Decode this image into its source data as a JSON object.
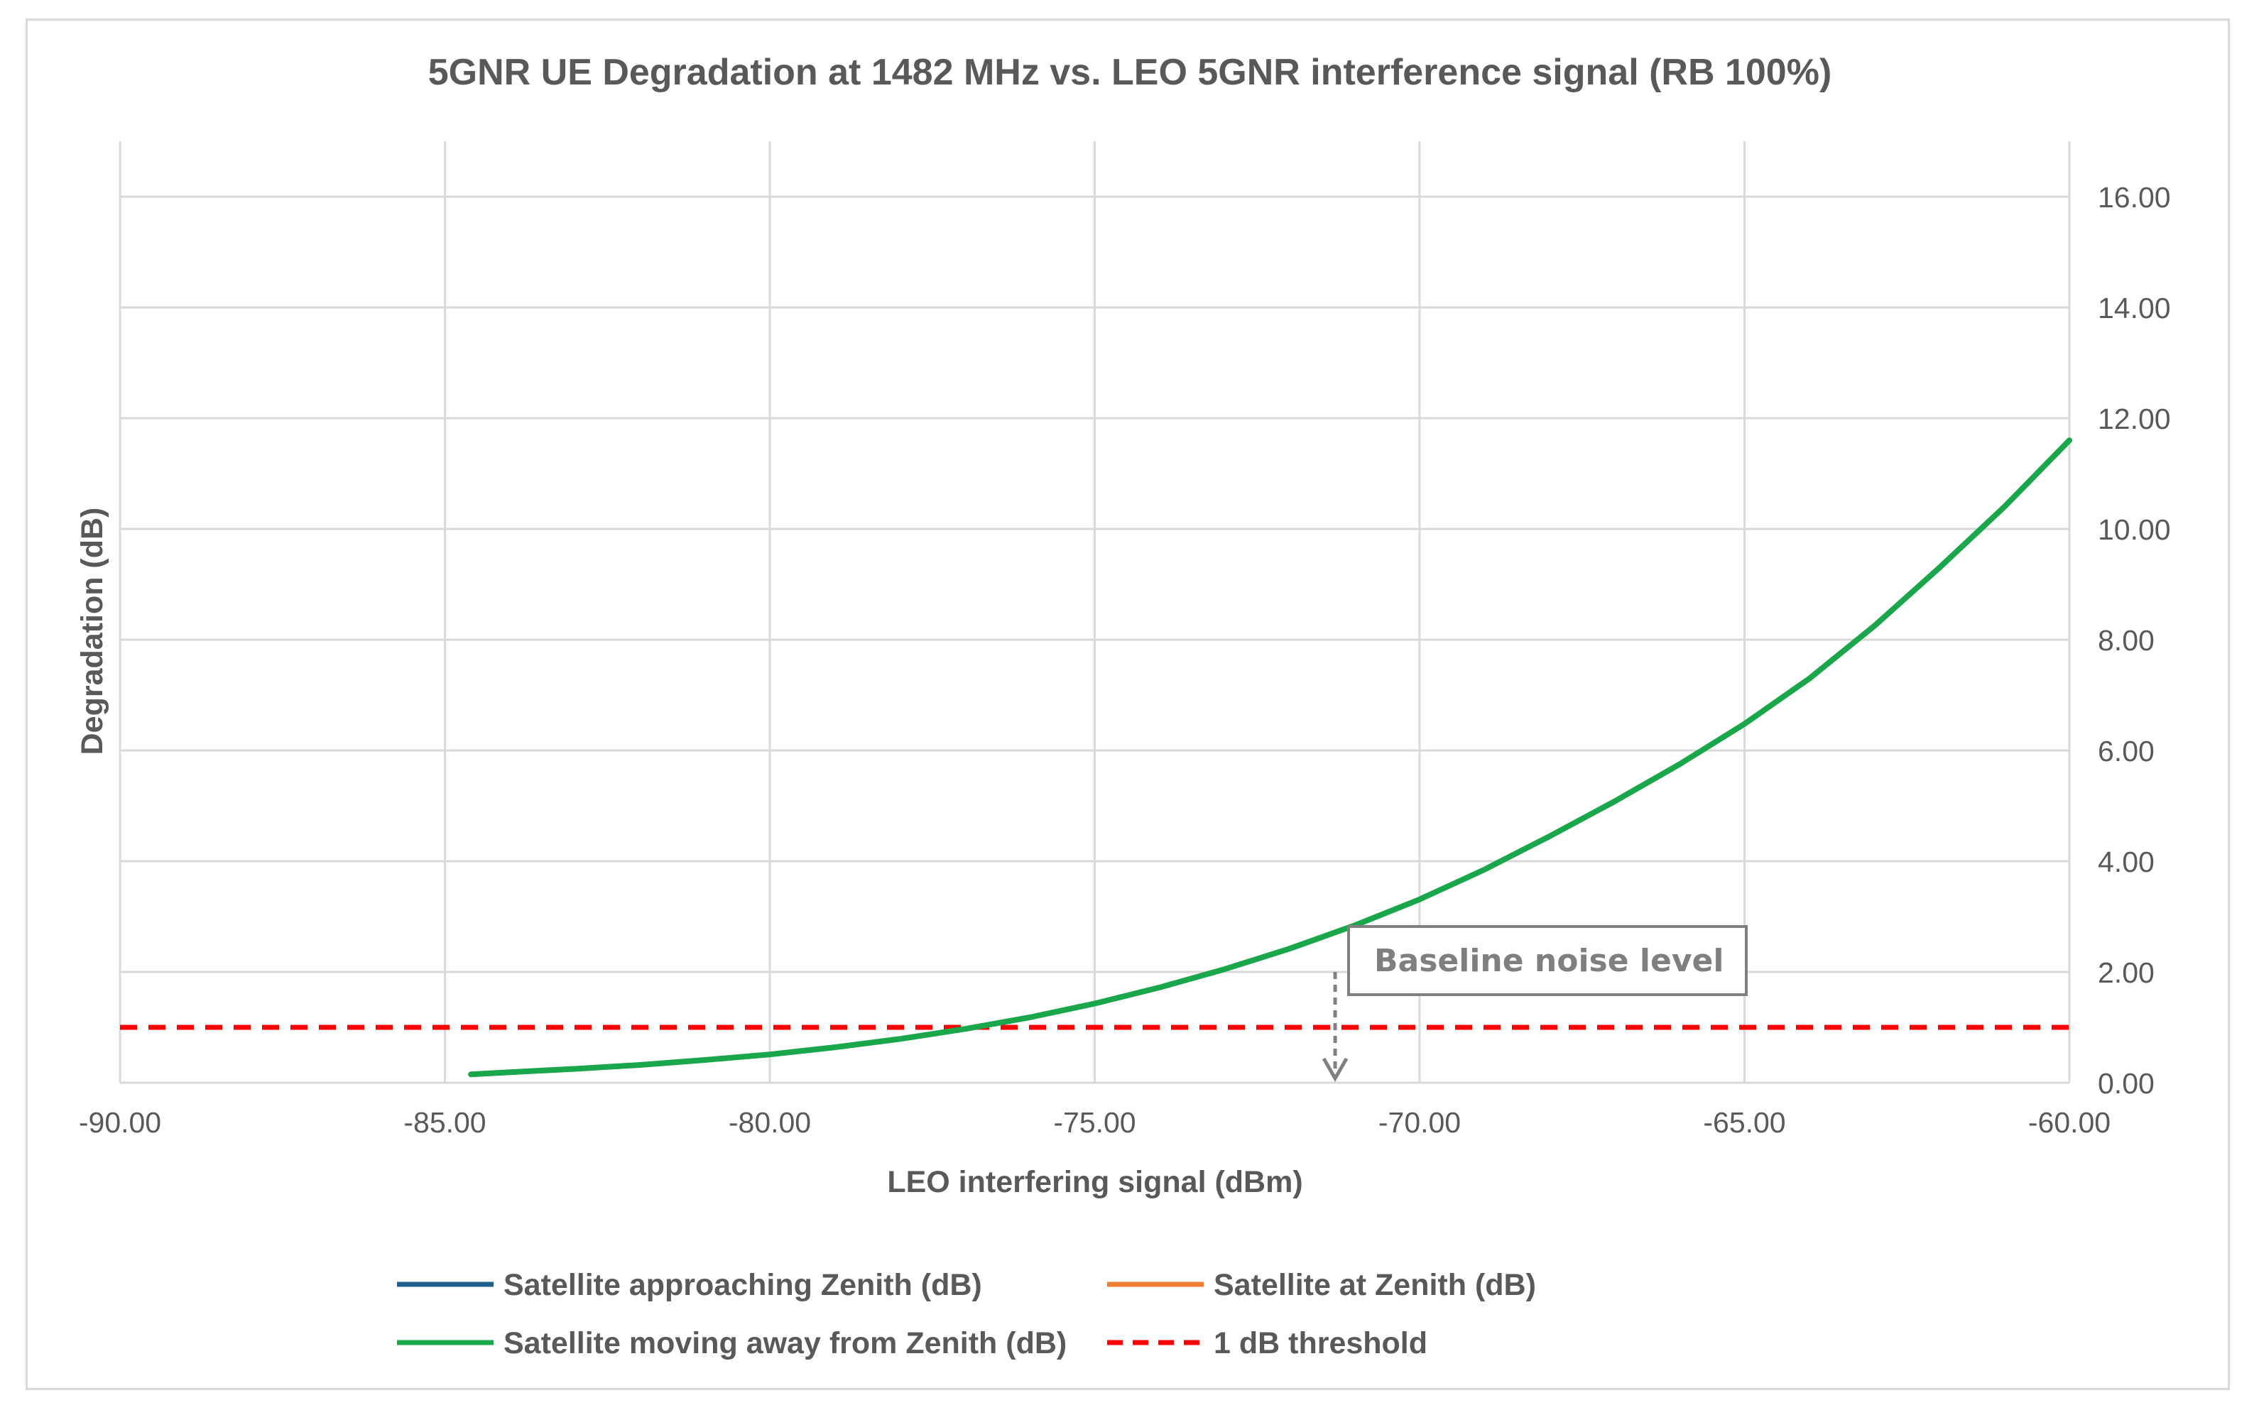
{
  "chart_data": {
    "type": "line",
    "title": "5GNR UE Degradation at 1482 MHz vs. LEO 5GNR interference signal (RB 100%)",
    "xlabel": "LEO interfering signal (dBm)",
    "ylabel": "Degradation (dB)",
    "xlim": [
      -90,
      -60
    ],
    "ylim": [
      0,
      17
    ],
    "x_ticks": [
      -90,
      -85,
      -80,
      -75,
      -70,
      -65,
      -60
    ],
    "x_tick_labels": [
      "-90.00",
      "-85.00",
      "-80.00",
      "-75.00",
      "-70.00",
      "-65.00",
      "-60.00"
    ],
    "y_ticks": [
      0,
      2,
      4,
      6,
      8,
      10,
      12,
      14,
      16
    ],
    "y_tick_labels": [
      "0.00",
      "2.00",
      "4.00",
      "6.00",
      "8.00",
      "10.00",
      "12.00",
      "14.00",
      "16.00"
    ],
    "y_axis_side": "right",
    "grid": true,
    "legend_position": "bottom",
    "series": [
      {
        "name": "Satellite approaching Zenith (dB)",
        "color": "#1f5f8b",
        "style": "solid",
        "x": [],
        "y": []
      },
      {
        "name": "Satellite at Zenith (dB)",
        "color": "#ed7d31",
        "style": "solid",
        "x": [],
        "y": []
      },
      {
        "name": "Satellite moving away from Zenith (dB)",
        "color": "#1aa64a",
        "style": "solid",
        "x": [
          -84.6,
          -84,
          -83,
          -82,
          -81,
          -80,
          -79,
          -78,
          -77,
          -76,
          -75,
          -74,
          -73,
          -72,
          -71,
          -70,
          -69,
          -68,
          -67,
          -66,
          -65,
          -64,
          -63,
          -62,
          -61,
          -60
        ],
        "y": [
          0.15,
          0.19,
          0.25,
          0.32,
          0.41,
          0.51,
          0.64,
          0.79,
          0.97,
          1.18,
          1.43,
          1.72,
          2.05,
          2.42,
          2.84,
          3.31,
          3.85,
          4.45,
          5.08,
          5.75,
          6.48,
          7.3,
          8.25,
          9.3,
          10.4,
          11.6
        ]
      },
      {
        "name": "1 dB threshold",
        "color": "#ff0000",
        "style": "dashed",
        "x": [
          -90,
          -60
        ],
        "y": [
          1,
          1
        ]
      }
    ],
    "annotations": [
      {
        "text": "Baseline noise level",
        "arrow_x": -71.3,
        "arrow_to_y": 0
      }
    ]
  }
}
